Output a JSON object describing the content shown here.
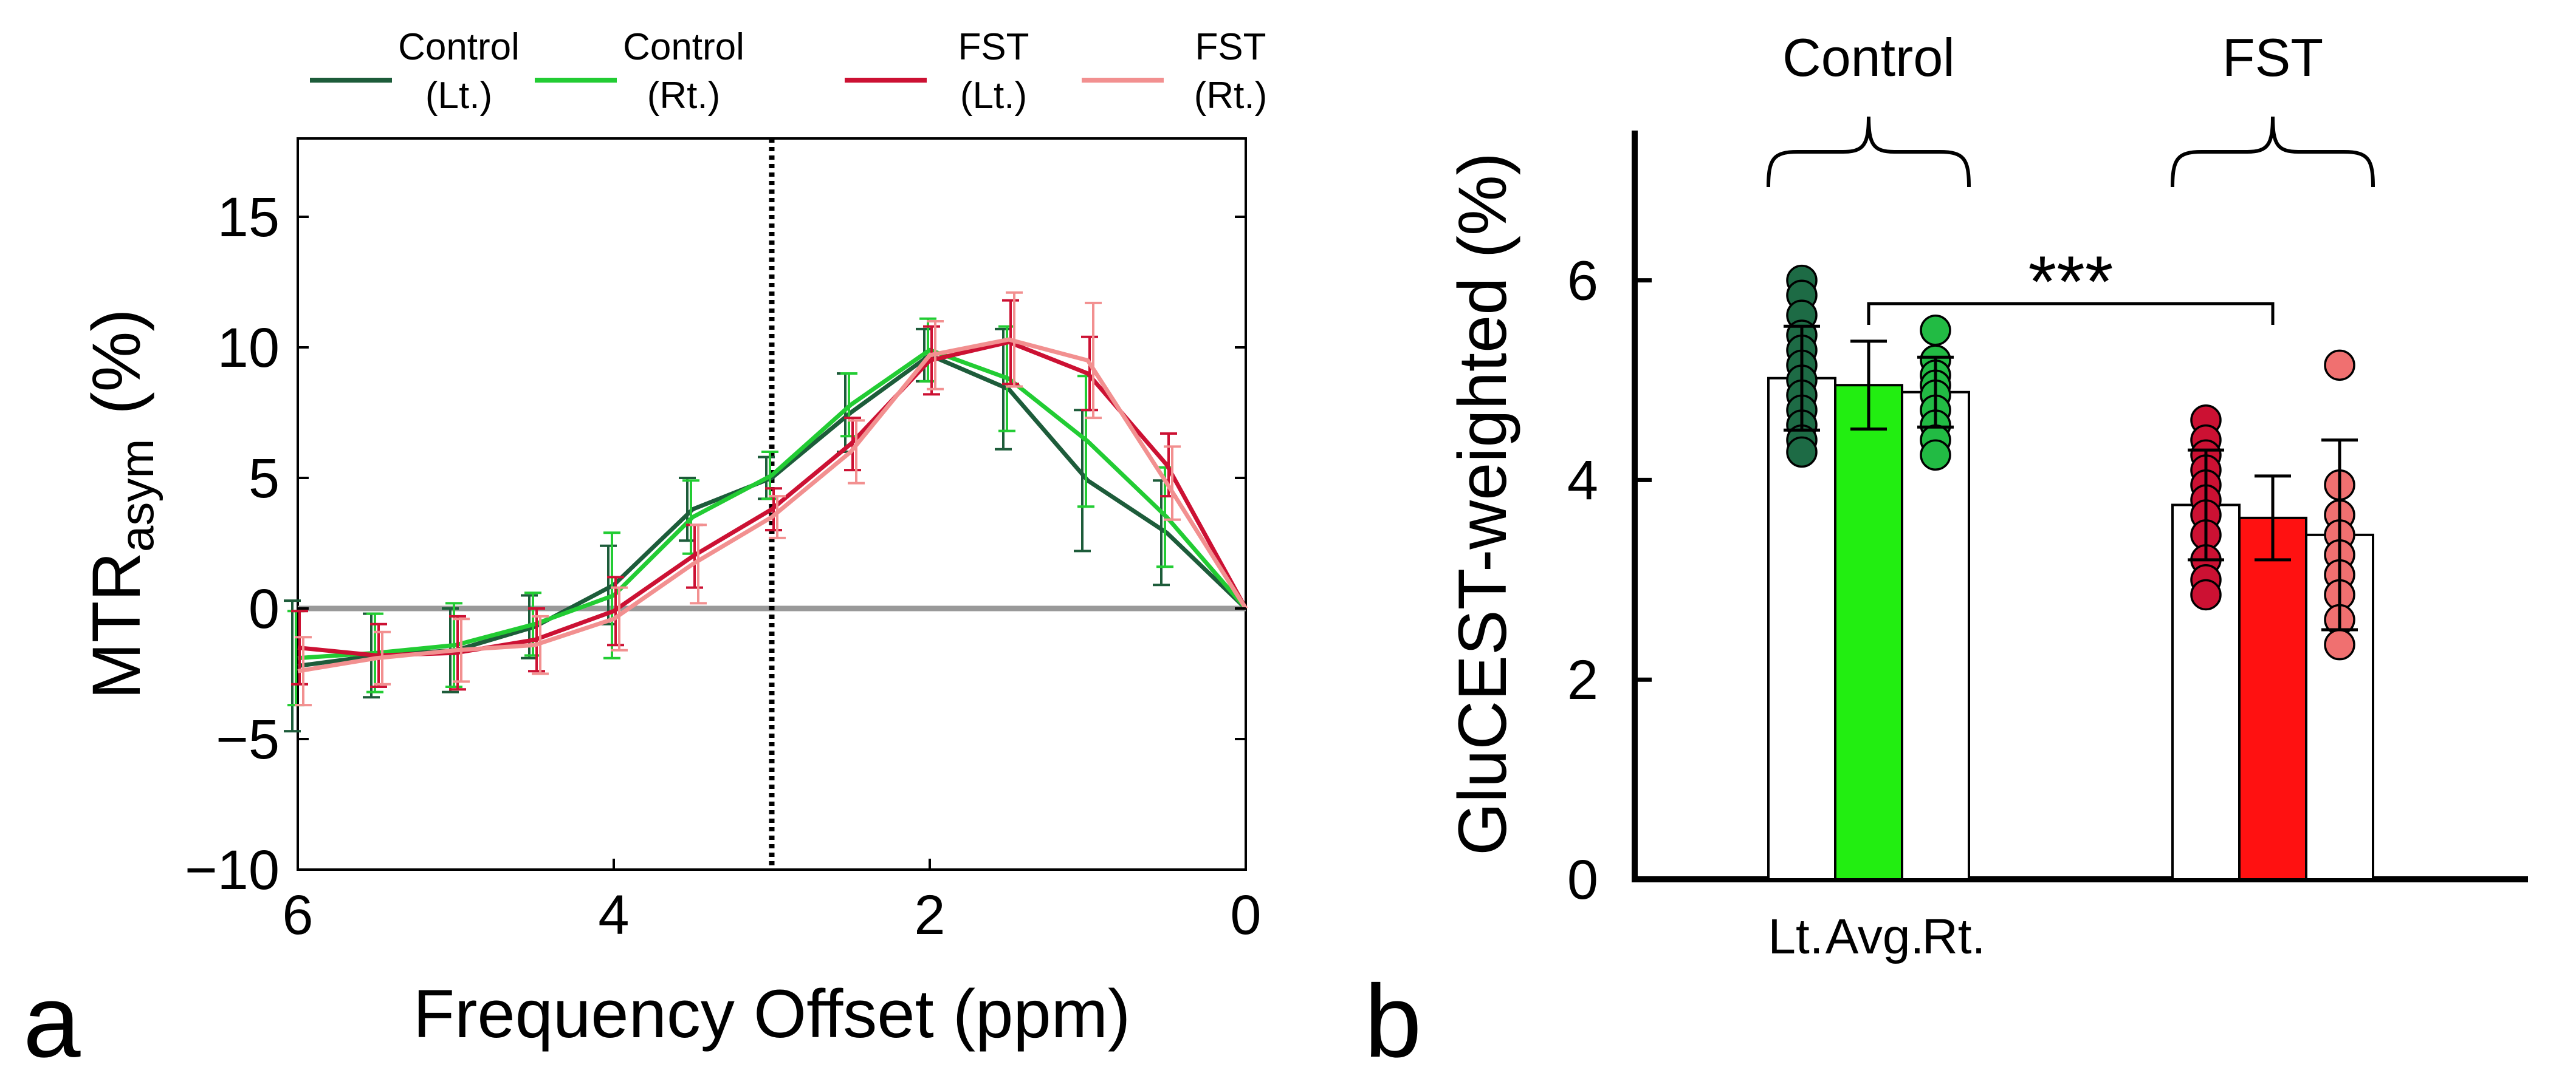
{
  "chart_data": [
    {
      "panel_label": "a",
      "type": "line",
      "xlabel": "Frequency Offset (ppm)",
      "ylabel_main": "MTR",
      "ylabel_sub": "asym",
      "ylabel_unit": "(%)",
      "xlim": [
        6,
        0
      ],
      "ylim": [
        -10,
        18
      ],
      "x_ticks": [
        6,
        4,
        2,
        0
      ],
      "x_tick_labels": [
        "6",
        "4",
        "2",
        "0"
      ],
      "y_ticks": [
        -10,
        -5,
        0,
        5,
        10,
        15
      ],
      "y_tick_labels": [
        "−10",
        "−5",
        "0",
        "5",
        "10",
        "15"
      ],
      "reference_line_x": 3,
      "reference_line_y": 0,
      "x": [
        6,
        5.5,
        5,
        4.5,
        4,
        3.5,
        3,
        2.5,
        2,
        1.5,
        1,
        0.5,
        0
      ],
      "series": [
        {
          "name": "Control (Lt.)",
          "legend_line1": "Control",
          "legend_line2": "(Lt.)",
          "color": "#1d5c3a",
          "values": [
            -2.2,
            -1.8,
            -1.6,
            -0.7,
            0.9,
            3.8,
            5.0,
            7.5,
            9.7,
            8.4,
            4.9,
            2.9,
            0
          ],
          "errors": [
            2.5,
            1.6,
            1.6,
            1.2,
            1.5,
            1.2,
            0.8,
            1.5,
            1.0,
            2.3,
            2.7,
            2.0,
            0
          ]
        },
        {
          "name": "Control (Rt.)",
          "legend_line1": "Control",
          "legend_line2": "(Rt.)",
          "color": "#22cc33",
          "values": [
            -1.9,
            -1.7,
            -1.4,
            -0.6,
            0.5,
            3.5,
            5.1,
            7.8,
            9.9,
            8.8,
            6.4,
            3.5,
            0
          ],
          "errors": [
            1.8,
            1.5,
            1.6,
            1.2,
            2.4,
            1.4,
            0.9,
            1.2,
            1.2,
            2.0,
            2.5,
            1.9,
            0
          ]
        },
        {
          "name": "FST (Lt.)",
          "legend_line1": "FST",
          "legend_line2": "(Lt.)",
          "color": "#cc1133",
          "values": [
            -1.5,
            -1.8,
            -1.7,
            -1.2,
            -0.1,
            2.0,
            3.8,
            6.3,
            9.5,
            10.2,
            9.0,
            5.5,
            0
          ],
          "errors": [
            1.4,
            1.2,
            1.4,
            1.2,
            1.3,
            1.2,
            0.8,
            1.0,
            1.3,
            1.6,
            1.4,
            1.2,
            0
          ]
        },
        {
          "name": "FST (Rt.)",
          "legend_line1": "FST",
          "legend_line2": "(Rt.)",
          "color": "#f29090",
          "values": [
            -2.4,
            -1.9,
            -1.6,
            -1.4,
            -0.4,
            1.7,
            3.5,
            6.0,
            9.7,
            10.3,
            9.5,
            4.8,
            0
          ],
          "errors": [
            1.3,
            1.0,
            1.2,
            1.1,
            1.2,
            1.5,
            0.8,
            1.2,
            1.3,
            1.8,
            2.2,
            1.4,
            0
          ]
        }
      ]
    },
    {
      "panel_label": "b",
      "type": "bar",
      "ylabel": "GluCEST-weighted (%)",
      "ylim": [
        0,
        7.5
      ],
      "y_ticks": [
        0,
        2,
        4,
        6
      ],
      "y_tick_labels": [
        "0",
        "2",
        "4",
        "6"
      ],
      "x_labels": [
        "Lt.",
        "Avg.",
        "Rt."
      ],
      "significance": "***",
      "groups": [
        {
          "name": "Control",
          "bars": [
            {
              "label": "Lt.",
              "value": 5.02,
              "error": 0.52,
              "fill": "#ffffff",
              "points": [
                6.0,
                5.85,
                5.65,
                5.45,
                5.3,
                5.15,
                5.0,
                4.85,
                4.7,
                4.55,
                4.4,
                4.28
              ],
              "point_color": "#1d6b45"
            },
            {
              "label": "Avg.",
              "value": 4.95,
              "error": 0.44,
              "fill": "#22ee11"
            },
            {
              "label": "Rt.",
              "value": 4.88,
              "error": 0.35,
              "fill": "#ffffff",
              "points": [
                5.5,
                5.2,
                5.05,
                4.95,
                4.85,
                4.7,
                4.55,
                4.4,
                4.25
              ],
              "point_color": "#22bb44"
            }
          ]
        },
        {
          "name": "FST",
          "bars": [
            {
              "label": "Lt.",
              "value": 3.75,
              "error": 0.55,
              "fill": "#ffffff",
              "points": [
                4.6,
                4.4,
                4.25,
                4.1,
                3.95,
                3.8,
                3.65,
                3.45,
                3.2,
                3.0,
                2.85
              ],
              "point_color": "#cc1133"
            },
            {
              "label": "Avg.",
              "value": 3.62,
              "error": 0.42,
              "fill": "#ff1111"
            },
            {
              "label": "Rt.",
              "value": 3.45,
              "error": 0.95,
              "fill": "#ffffff",
              "points": [
                5.15,
                3.95,
                3.65,
                3.45,
                3.25,
                3.05,
                2.85,
                2.6,
                2.35
              ],
              "point_color": "#f07070"
            }
          ]
        }
      ]
    }
  ]
}
